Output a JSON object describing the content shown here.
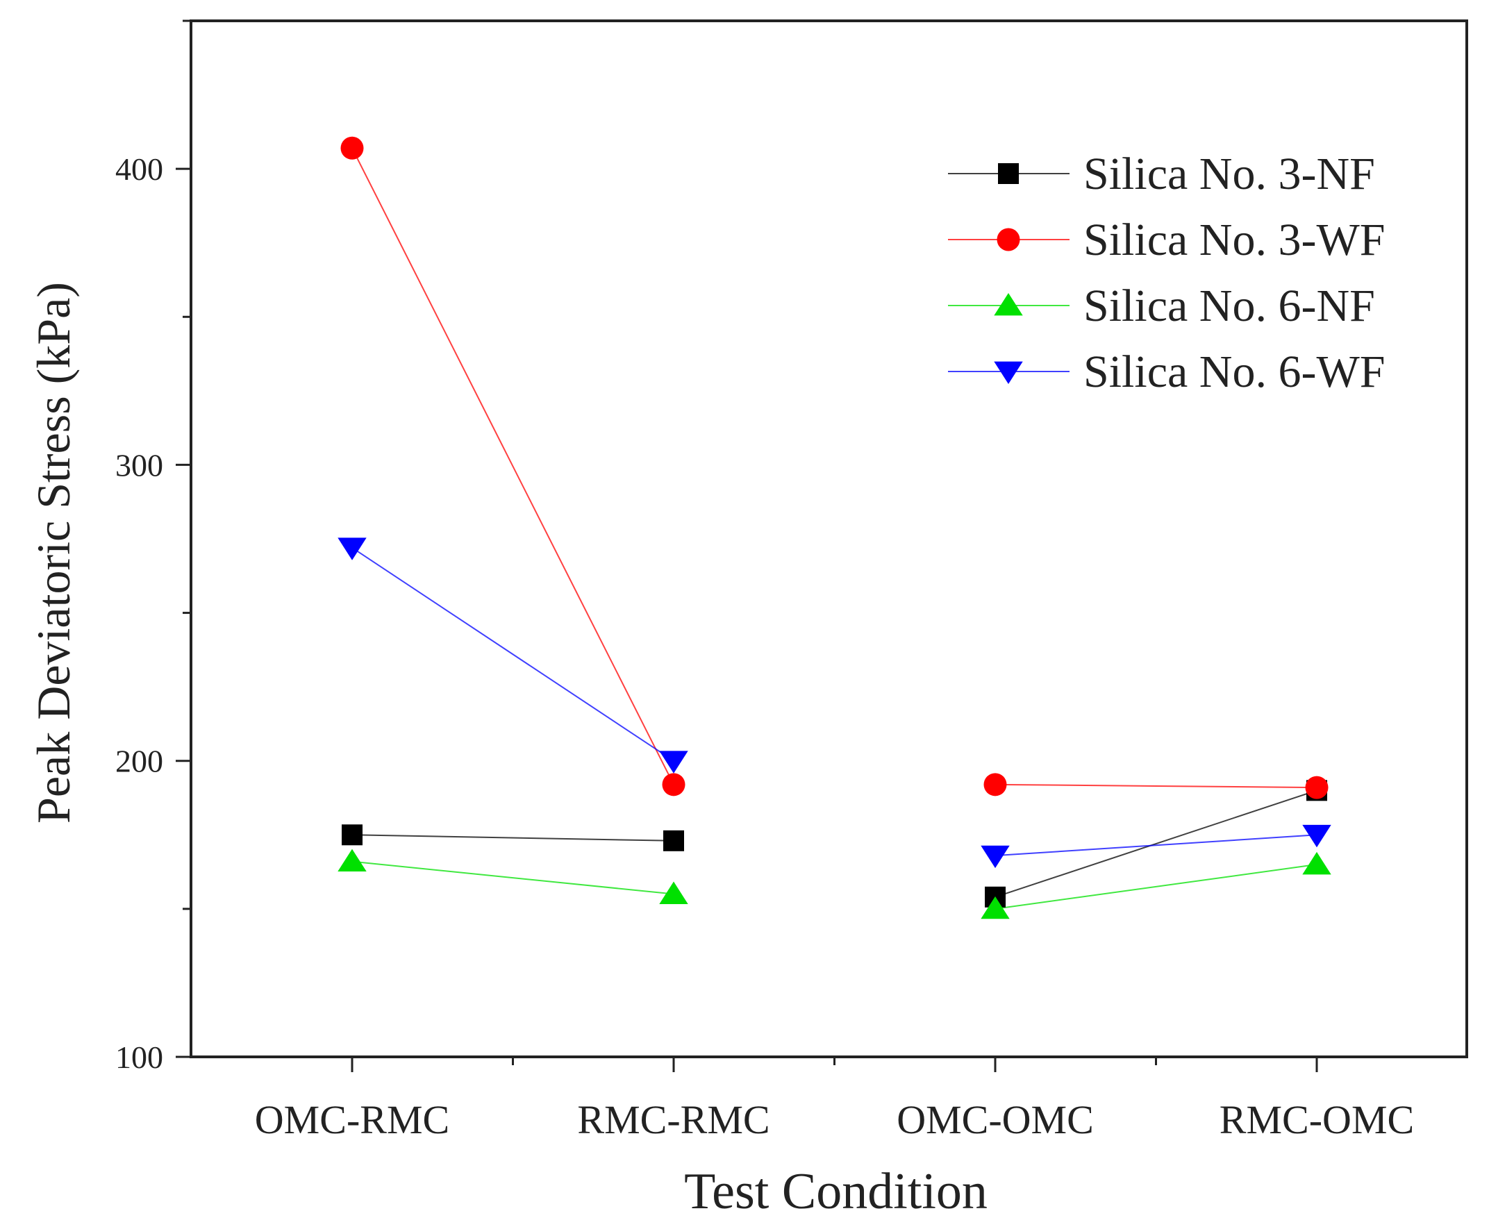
{
  "chart_data": {
    "type": "line",
    "xlabel": "Test Condition",
    "ylabel": "Peak Deviatoric Stress (kPa)",
    "categories": [
      "OMC-RMC",
      "RMC-RMC",
      "OMC-OMC",
      "RMC-OMC"
    ],
    "ylim": [
      100,
      450
    ],
    "yticks": [
      100,
      200,
      300,
      400
    ],
    "grid": false,
    "legend_position": "top-right",
    "series": [
      {
        "name": "Silica No. 3-NF",
        "color": "#000000",
        "marker": "square",
        "segments": [
          [
            0,
            1
          ],
          [
            2,
            3
          ]
        ],
        "values": [
          175,
          173,
          154,
          190
        ]
      },
      {
        "name": "Silica No. 3-WF",
        "color": "#ff0000",
        "marker": "circle",
        "segments": [
          [
            0,
            1
          ],
          [
            2,
            3
          ]
        ],
        "values": [
          407,
          192,
          192,
          191
        ]
      },
      {
        "name": "Silica No. 6-NF",
        "color": "#00e000",
        "marker": "triangle-up",
        "segments": [
          [
            0,
            1
          ],
          [
            2,
            3
          ]
        ],
        "values": [
          166,
          155,
          150,
          165
        ]
      },
      {
        "name": "Silica No. 6-WF",
        "color": "#0000ff",
        "marker": "triangle-down",
        "segments": [
          [
            0,
            1
          ],
          [
            2,
            3
          ]
        ],
        "values": [
          272,
          200,
          168,
          175
        ]
      }
    ]
  }
}
